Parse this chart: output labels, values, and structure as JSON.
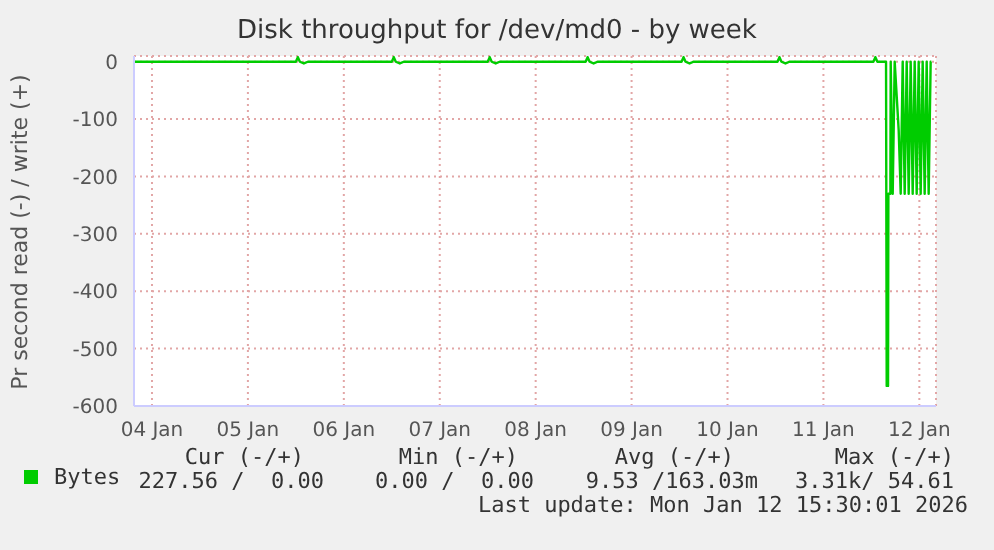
{
  "chart_data": {
    "type": "line",
    "title": "Disk throughput for /dev/md0 - by week",
    "ylabel": "Pr second read (-) / write (+)",
    "xlim": [
      "2026-01-03T19:30",
      "2026-01-12T04:10"
    ],
    "xticks": [
      {
        "value": "2026-01-04",
        "label": "04 Jan"
      },
      {
        "value": "2026-01-05",
        "label": "05 Jan"
      },
      {
        "value": "2026-01-06",
        "label": "06 Jan"
      },
      {
        "value": "2026-01-07",
        "label": "07 Jan"
      },
      {
        "value": "2026-01-08",
        "label": "08 Jan"
      },
      {
        "value": "2026-01-09",
        "label": "09 Jan"
      },
      {
        "value": "2026-01-10",
        "label": "10 Jan"
      },
      {
        "value": "2026-01-11",
        "label": "11 Jan"
      },
      {
        "value": "2026-01-12",
        "label": "12 Jan"
      }
    ],
    "ylim": [
      -600,
      10
    ],
    "yticks": [
      -600,
      -500,
      -400,
      -300,
      -200,
      -100,
      0
    ],
    "grid": true,
    "legend": "bottom left",
    "annotations": [
      "Cur (-/+)",
      "Min (-/+)",
      "Avg (-/+)",
      "Max (-/+)",
      "227.56 /  0.00",
      "0.00 /  0.00",
      "9.53 /163.03m",
      "3.31k/ 54.61",
      "Last update: Mon Jan 12 15:30:01 2026"
    ],
    "series": [
      {
        "name": "Bytes",
        "color": "#00cc00",
        "x": [
          "2026-01-03T19:30",
          "2026-01-05T12:00",
          "2026-01-05T12:30",
          "2026-01-05T13:00",
          "2026-01-05T14:00",
          "2026-01-05T15:00",
          "2026-01-06T12:00",
          "2026-01-06T12:30",
          "2026-01-06T13:00",
          "2026-01-06T14:00",
          "2026-01-06T15:00",
          "2026-01-07T12:00",
          "2026-01-07T12:30",
          "2026-01-07T13:00",
          "2026-01-07T14:00",
          "2026-01-07T15:00",
          "2026-01-08T12:30",
          "2026-01-08T13:00",
          "2026-01-08T13:30",
          "2026-01-08T14:30",
          "2026-01-08T15:30",
          "2026-01-09T12:30",
          "2026-01-09T13:00",
          "2026-01-09T13:30",
          "2026-01-09T14:30",
          "2026-01-09T15:30",
          "2026-01-10T12:30",
          "2026-01-10T13:00",
          "2026-01-10T13:30",
          "2026-01-10T14:30",
          "2026-01-10T15:30",
          "2026-01-11T12:30",
          "2026-01-11T13:00",
          "2026-01-11T13:30",
          "2026-01-11T15:40",
          "2026-01-11T15:50",
          "2026-01-11T16:10",
          "2026-01-11T16:15",
          "2026-01-11T16:45",
          "2026-01-11T16:50",
          "2026-01-11T17:20",
          "2026-01-11T17:50",
          "2026-01-11T18:20",
          "2026-01-11T18:50",
          "2026-01-11T19:20",
          "2026-01-11T19:50",
          "2026-01-11T20:20",
          "2026-01-11T20:50",
          "2026-01-11T21:20",
          "2026-01-11T21:50",
          "2026-01-11T22:20",
          "2026-01-11T22:50",
          "2026-01-11T23:20",
          "2026-01-11T23:50",
          "2026-01-12T00:20",
          "2026-01-12T00:50",
          "2026-01-12T01:20",
          "2026-01-12T01:50",
          "2026-01-12T02:20",
          "2026-01-12T02:50",
          "2026-01-12T03:00"
        ],
        "values": [
          0,
          0,
          8,
          0,
          -3,
          0,
          0,
          8,
          0,
          -3,
          0,
          0,
          8,
          0,
          -3,
          0,
          0,
          8,
          0,
          -3,
          0,
          0,
          8,
          0,
          -3,
          0,
          0,
          8,
          0,
          -3,
          0,
          0,
          8,
          0,
          0,
          -565,
          -565,
          -230,
          -230,
          0,
          -230,
          0,
          -60,
          -120,
          -230,
          0,
          -230,
          0,
          -230,
          0,
          -230,
          0,
          -230,
          0,
          -230,
          0,
          -230,
          0,
          -230,
          0,
          0
        ]
      }
    ]
  }
}
